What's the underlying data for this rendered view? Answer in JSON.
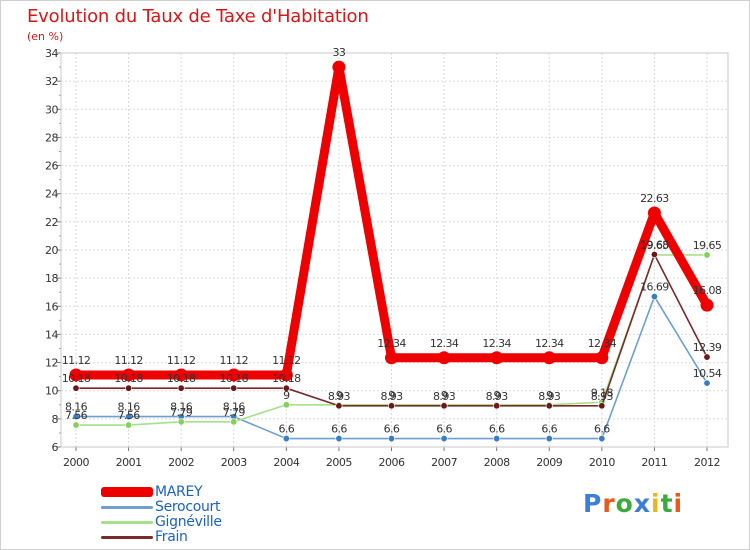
{
  "title": "Evolution du Taux de Taxe d'Habitation",
  "subtitle": "(en %)",
  "logo": {
    "text": "Proxiti",
    "letter_colors": [
      "#3d7fd8",
      "#e85a1a",
      "#3daa3d",
      "#3d7fd8",
      "#e8b81a",
      "#3daa3d",
      "#e85a1a"
    ]
  },
  "chart_data": {
    "type": "line",
    "title": "Evolution du Taux de Taxe d'Habitation",
    "ylabel": "(en %)",
    "xlabel": "",
    "ylim": [
      6,
      34
    ],
    "y_ticks": [
      "6",
      "8",
      "10",
      "12",
      "14",
      "16",
      "18",
      "20",
      "22",
      "24",
      "26",
      "28",
      "30",
      "32",
      "34"
    ],
    "categories": [
      "2000",
      "2001",
      "2002",
      "2003",
      "2004",
      "2005",
      "2006",
      "2007",
      "2008",
      "2009",
      "2010",
      "2011",
      "2012"
    ],
    "grid": true,
    "legend_position": "bottom-left",
    "series": [
      {
        "name": "Serocourt",
        "color": "#6e9fd0",
        "marker": "#3a7ec0",
        "values": [
          8.16,
          8.16,
          8.16,
          8.16,
          6.6,
          6.6,
          6.6,
          6.6,
          6.6,
          6.6,
          6.6,
          16.69,
          10.54
        ],
        "labels": [
          "8.16",
          "8.16",
          "8.16",
          "8.16",
          "6.6",
          "6.6",
          "6.6",
          "6.6",
          "6.6",
          "6.6",
          "6.6",
          "16.69",
          "10.54"
        ]
      },
      {
        "name": "Gignéville",
        "color": "#a6e08a",
        "marker": "#84d05e",
        "values": [
          7.56,
          7.56,
          7.79,
          7.79,
          9,
          9,
          9,
          9,
          9,
          9,
          9.18,
          19.65,
          19.65
        ],
        "labels": [
          "7.56",
          "7.56",
          "7.79",
          "7.79",
          "9",
          "9",
          "9",
          "9",
          "9",
          "9",
          "9.18",
          "19.65",
          "19.65"
        ]
      },
      {
        "name": "Frain",
        "color": "#7a2a2a",
        "marker": "#6a1818",
        "values": [
          10.18,
          10.18,
          10.18,
          10.18,
          10.18,
          8.93,
          8.93,
          8.93,
          8.93,
          8.93,
          8.93,
          19.68,
          12.39
        ],
        "labels": [
          "10.18",
          "10.18",
          "10.18",
          "10.18",
          "10.18",
          "8.93",
          "8.93",
          "8.93",
          "8.93",
          "8.93",
          "8.93",
          "19.68",
          "12.39"
        ]
      },
      {
        "name": "MAREY",
        "color": "#ee0000",
        "marker": "#ee0000",
        "values": [
          11.12,
          11.12,
          11.12,
          11.12,
          11.12,
          33,
          12.34,
          12.34,
          12.34,
          12.34,
          12.34,
          22.63,
          16.08
        ],
        "labels": [
          "11.12",
          "11.12",
          "11.12",
          "11.12",
          "11.12",
          "33",
          "12.34",
          "12.34",
          "12.34",
          "12.34",
          "12.34",
          "22.63",
          "16.08"
        ]
      }
    ],
    "legend": [
      "MAREY",
      "Serocourt",
      "Gignéville",
      "Frain"
    ]
  }
}
